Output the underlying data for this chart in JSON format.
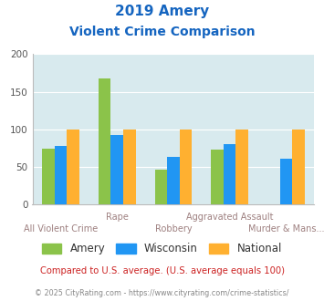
{
  "title_line1": "2019 Amery",
  "title_line2": "Violent Crime Comparison",
  "categories": [
    "All Violent Crime",
    "Rape",
    "Robbery",
    "Aggravated Assault",
    "Murder & Mans..."
  ],
  "cat_top_labels": [
    "",
    "Rape",
    "",
    "Aggravated Assault",
    ""
  ],
  "cat_bot_labels": [
    "All Violent Crime",
    "",
    "Robbery",
    "",
    "Murder & Mans..."
  ],
  "amery": [
    75,
    168,
    46,
    73,
    0
  ],
  "wisconsin": [
    78,
    92,
    63,
    81,
    61
  ],
  "national": [
    100,
    100,
    100,
    100,
    100
  ],
  "color_amery": "#8bc34a",
  "color_wisconsin": "#2196f3",
  "color_national": "#ffb030",
  "color_bg": "#d8eaee",
  "ylim": [
    0,
    200
  ],
  "yticks": [
    0,
    50,
    100,
    150,
    200
  ],
  "title_color": "#1565c0",
  "label_color": "#9e8080",
  "footer_text": "Compared to U.S. average. (U.S. average equals 100)",
  "footer_color": "#cc2222",
  "copyright_text": "© 2025 CityRating.com - https://www.cityrating.com/crime-statistics/",
  "copyright_color": "#888888",
  "legend_labels": [
    "Amery",
    "Wisconsin",
    "National"
  ]
}
